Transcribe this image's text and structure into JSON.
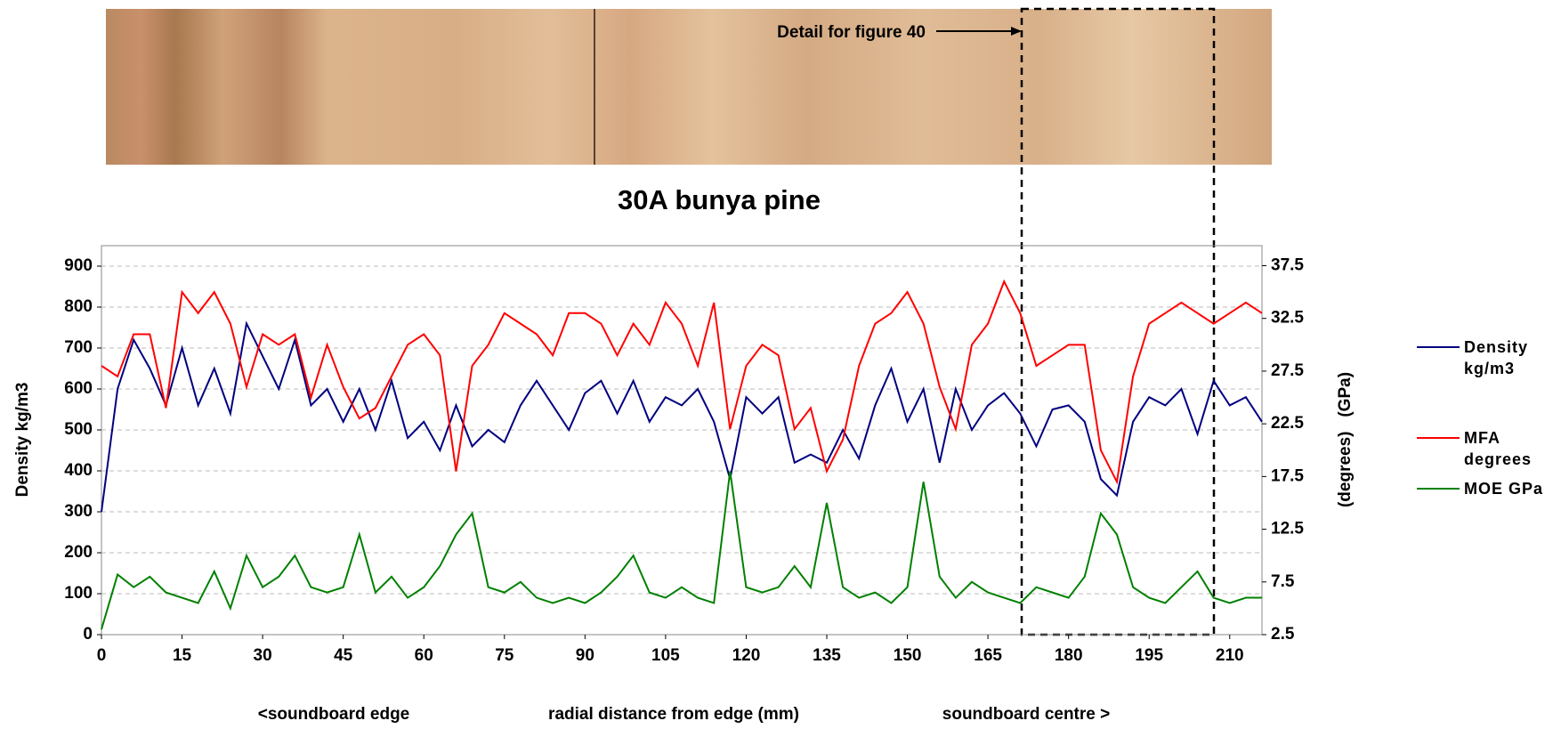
{
  "chart_data": {
    "type": "line",
    "title": "30A bunya pine",
    "annotation": "Detail for figure 40",
    "ylabel": "Density kg/m3",
    "y2label": "(degrees)   (GPa)",
    "xlabels": [
      "<soundboard edge",
      "radial distance from edge (mm)",
      "soundboard centre >"
    ],
    "x": [
      0,
      3,
      6,
      9,
      12,
      15,
      18,
      21,
      24,
      27,
      30,
      33,
      36,
      39,
      42,
      45,
      48,
      51,
      54,
      57,
      60,
      63,
      66,
      69,
      72,
      75,
      78,
      81,
      84,
      87,
      90,
      93,
      96,
      99,
      102,
      105,
      108,
      111,
      114,
      117,
      120,
      123,
      126,
      129,
      132,
      135,
      138,
      141,
      144,
      147,
      150,
      153,
      156,
      159,
      162,
      165,
      168,
      171,
      174,
      177,
      180,
      183,
      186,
      189,
      192,
      195,
      198,
      201,
      204,
      207,
      210,
      213,
      216
    ],
    "series": [
      {
        "name": "Density kg/m3",
        "color": "#000080",
        "axis": "y",
        "values": [
          300,
          600,
          720,
          650,
          560,
          700,
          560,
          650,
          540,
          760,
          680,
          600,
          720,
          560,
          600,
          520,
          600,
          500,
          620,
          480,
          520,
          450,
          560,
          460,
          500,
          470,
          560,
          620,
          560,
          500,
          590,
          620,
          540,
          620,
          520,
          580,
          560,
          600,
          520,
          380,
          580,
          540,
          580,
          420,
          440,
          420,
          500,
          430,
          560,
          650,
          520,
          600,
          420,
          600,
          500,
          560,
          590,
          540,
          460,
          550,
          560,
          520,
          380,
          340,
          520,
          580,
          560,
          600,
          490,
          620,
          560,
          580,
          520
        ]
      },
      {
        "name": "MFA degrees",
        "color": "#ff0000",
        "axis": "y2",
        "values": [
          28,
          27,
          31,
          31,
          24,
          35,
          33,
          35,
          32,
          26,
          31,
          30,
          31,
          25,
          30,
          26,
          23,
          24,
          27,
          30,
          31,
          29,
          18,
          28,
          30,
          33,
          32,
          31,
          29,
          33,
          33,
          32,
          29,
          32,
          30,
          34,
          32,
          28,
          34,
          22,
          28,
          30,
          29,
          22,
          24,
          18,
          21,
          28,
          32,
          33,
          35,
          32,
          26,
          22,
          30,
          32,
          36,
          33,
          28,
          29,
          30,
          30,
          20,
          17,
          27,
          32,
          33,
          34,
          33,
          32,
          33,
          34,
          33
        ]
      },
      {
        "name": "MOE GPa",
        "color": "#008000",
        "axis": "y2",
        "values": [
          3,
          8.2,
          7,
          8,
          6.5,
          6,
          5.5,
          8.5,
          5,
          10,
          7,
          8,
          10,
          7,
          6.5,
          7,
          12,
          6.5,
          8,
          6,
          7,
          9,
          12,
          14,
          7,
          6.5,
          7.5,
          6,
          5.5,
          6,
          5.5,
          6.5,
          8,
          10,
          6.5,
          6,
          7,
          6,
          5.5,
          18,
          7,
          6.5,
          7,
          9,
          7,
          15,
          7,
          6,
          6.5,
          5.5,
          7,
          17,
          8,
          6,
          7.5,
          6.5,
          6,
          5.5,
          7,
          6.5,
          6,
          8,
          14,
          12,
          7,
          6,
          5.5,
          7,
          8.5,
          6,
          5.5,
          6,
          6
        ]
      }
    ],
    "xlim": [
      0,
      216
    ],
    "xticks": [
      0,
      15,
      30,
      45,
      60,
      75,
      90,
      105,
      120,
      135,
      150,
      165,
      180,
      195,
      210
    ],
    "ylim": [
      0,
      950
    ],
    "yticks": [
      0,
      100,
      200,
      300,
      400,
      500,
      600,
      700,
      800,
      900
    ],
    "y2lim": [
      2.5,
      39.4
    ],
    "y2ticks": [
      2.5,
      7.5,
      12.5,
      17.5,
      22.5,
      27.5,
      32.5,
      37.5
    ],
    "grid": true,
    "legend": "right"
  }
}
